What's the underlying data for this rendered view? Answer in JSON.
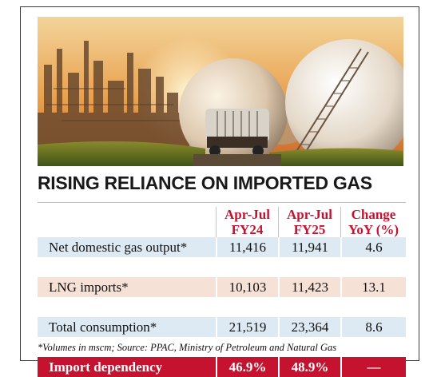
{
  "headline": "RISING RELIANCE ON IMPORTED GAS",
  "table": {
    "columns": [
      {
        "line1": "Apr-Jul",
        "line2": "FY24"
      },
      {
        "line1": "Apr-Jul",
        "line2": "FY25"
      },
      {
        "line1": "Change",
        "line2": "YoY (%)"
      }
    ],
    "rows": [
      {
        "label": "Net domestic gas output*",
        "fy24": "11,416",
        "fy25": "11,941",
        "change": "4.6"
      },
      {
        "label": "LNG imports*",
        "fy24": "10,103",
        "fy25": "11,423",
        "change": "13.1"
      },
      {
        "label": "Total consumption*",
        "fy24": "21,519",
        "fy25": "23,364",
        "change": "8.6"
      },
      {
        "label": "Import dependency",
        "fy24": "46.9%",
        "fy25": "48.9%",
        "change": "—"
      }
    ]
  },
  "footnote": "*Volumes in mscm; Source: PPAC, Ministry of Petroleum and Natural Gas",
  "colors": {
    "accent": "#c4122f",
    "row_blue": "#dde9f3",
    "row_pink": "#f6e1d7"
  },
  "photo": {
    "icon": "lng-terminal-photo"
  }
}
